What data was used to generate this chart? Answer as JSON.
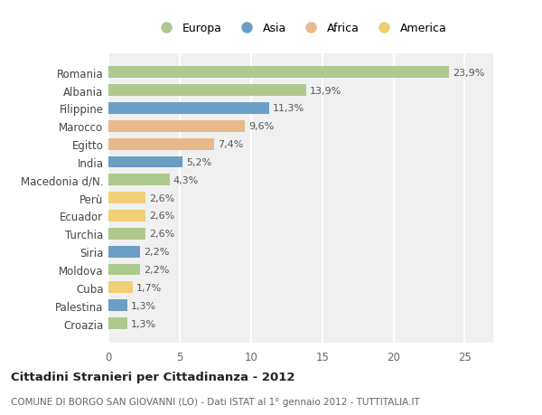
{
  "countries": [
    "Romania",
    "Albania",
    "Filippine",
    "Marocco",
    "Egitto",
    "India",
    "Macedonia d/N.",
    "Perù",
    "Ecuador",
    "Turchia",
    "Siria",
    "Moldova",
    "Cuba",
    "Palestina",
    "Croazia"
  ],
  "values": [
    23.9,
    13.9,
    11.3,
    9.6,
    7.4,
    5.2,
    4.3,
    2.6,
    2.6,
    2.6,
    2.2,
    2.2,
    1.7,
    1.3,
    1.3
  ],
  "labels": [
    "23,9%",
    "13,9%",
    "11,3%",
    "9,6%",
    "7,4%",
    "5,2%",
    "4,3%",
    "2,6%",
    "2,6%",
    "2,6%",
    "2,2%",
    "2,2%",
    "1,7%",
    "1,3%",
    "1,3%"
  ],
  "colors": [
    "#aec98e",
    "#aec98e",
    "#6b9ec4",
    "#e8b98c",
    "#e8b98c",
    "#6b9ec4",
    "#aec98e",
    "#f0d075",
    "#f0d075",
    "#aec98e",
    "#6b9ec4",
    "#aec98e",
    "#f0d075",
    "#6b9ec4",
    "#aec98e"
  ],
  "legend_labels": [
    "Europa",
    "Asia",
    "Africa",
    "America"
  ],
  "legend_colors": [
    "#aec98e",
    "#6b9ec4",
    "#e8b98c",
    "#f0d075"
  ],
  "title": "Cittadini Stranieri per Cittadinanza - 2012",
  "subtitle": "COMUNE DI BORGO SAN GIOVANNI (LO) - Dati ISTAT al 1° gennaio 2012 - TUTTITALIA.IT",
  "xlim": [
    0,
    27
  ],
  "xticks": [
    0,
    5,
    10,
    15,
    20,
    25
  ],
  "bg_color": "#ffffff",
  "plot_bg_color": "#f0f0f0"
}
